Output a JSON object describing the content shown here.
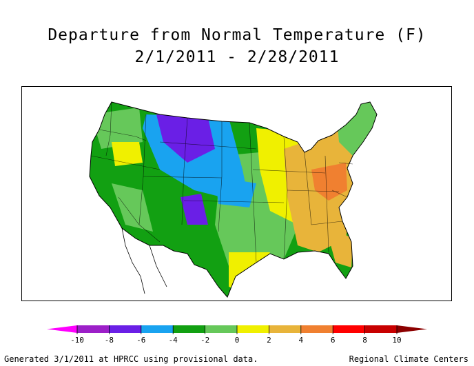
{
  "title": "Departure from Normal Temperature (F)",
  "date_range": "2/1/2011 - 2/28/2011",
  "legend": {
    "ticks": [
      "-10",
      "-8",
      "-6",
      "-4",
      "-2",
      "0",
      "2",
      "4",
      "6",
      "8",
      "10"
    ],
    "bins": [
      {
        "range": "< -10",
        "color": "#ff00ff"
      },
      {
        "range": "-10 to -8",
        "color": "#9c1fc8"
      },
      {
        "range": "-8 to -6",
        "color": "#6a1fe6"
      },
      {
        "range": "-6 to -4",
        "color": "#19a3f0"
      },
      {
        "range": "-4 to -2",
        "color": "#12a012"
      },
      {
        "range": "-2 to 0",
        "color": "#66c85a"
      },
      {
        "range": "0 to 2",
        "color": "#f0f000"
      },
      {
        "range": "2 to 4",
        "color": "#e8b43a"
      },
      {
        "range": "4 to 6",
        "color": "#f08030"
      },
      {
        "range": "6 to 8",
        "color": "#ff0000"
      },
      {
        "range": "8 to 10",
        "color": "#c80000"
      },
      {
        "range": "> 10",
        "color": "#8c0000"
      }
    ]
  },
  "footer": {
    "left": "Generated 3/1/2011 at HPRCC using provisional data.",
    "right": "Regional Climate Centers"
  }
}
